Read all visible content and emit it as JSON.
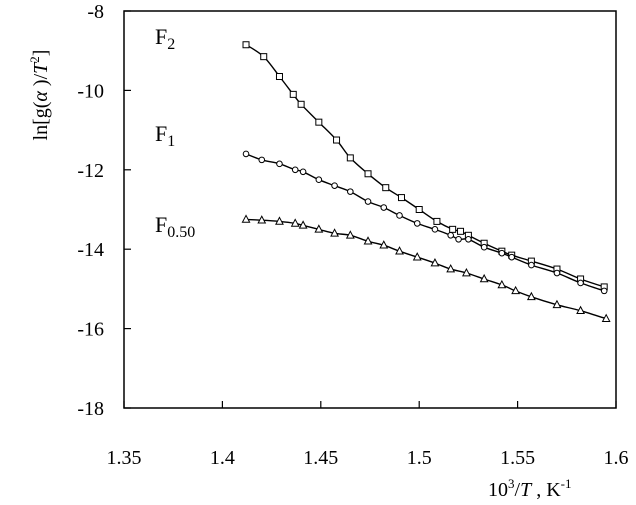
{
  "chart_data": {
    "type": "scatter",
    "xlabel": "10³/T, K⁻¹",
    "ylabel": "ln[g(α)/T²]",
    "xlim": [
      1.35,
      1.6
    ],
    "ylim": [
      -18,
      -8
    ],
    "x_ticks": [
      "1.35",
      "1.4",
      "1.45",
      "1.5",
      "1.55",
      "1.6"
    ],
    "y_ticks": [
      "-8",
      "-10",
      "-12",
      "-14",
      "-16",
      "-18"
    ],
    "grid": false,
    "series": [
      {
        "name": "F2",
        "marker": "square",
        "x": [
          1.412,
          1.421,
          1.429,
          1.436,
          1.44,
          1.449,
          1.458,
          1.465,
          1.474,
          1.483,
          1.491,
          1.5,
          1.509,
          1.517,
          1.521,
          1.525,
          1.533,
          1.542,
          1.547,
          1.557,
          1.57,
          1.582,
          1.594
        ],
        "y": [
          -8.85,
          -9.15,
          -9.65,
          -10.1,
          -10.35,
          -10.8,
          -11.25,
          -11.7,
          -12.1,
          -12.45,
          -12.7,
          -13.0,
          -13.3,
          -13.5,
          -13.55,
          -13.65,
          -13.85,
          -14.05,
          -14.15,
          -14.3,
          -14.5,
          -14.75,
          -14.95
        ]
      },
      {
        "name": "F1",
        "marker": "circle",
        "x": [
          1.412,
          1.42,
          1.429,
          1.437,
          1.441,
          1.449,
          1.457,
          1.465,
          1.474,
          1.482,
          1.49,
          1.499,
          1.508,
          1.516,
          1.52,
          1.525,
          1.533,
          1.542,
          1.547,
          1.557,
          1.57,
          1.582,
          1.594
        ],
        "y": [
          -11.6,
          -11.75,
          -11.85,
          -12.0,
          -12.05,
          -12.25,
          -12.4,
          -12.55,
          -12.8,
          -12.95,
          -13.15,
          -13.35,
          -13.5,
          -13.65,
          -13.75,
          -13.75,
          -13.95,
          -14.1,
          -14.2,
          -14.4,
          -14.6,
          -14.85,
          -15.05
        ]
      },
      {
        "name": "F0.50",
        "marker": "triangle",
        "x": [
          1.412,
          1.42,
          1.429,
          1.437,
          1.441,
          1.449,
          1.457,
          1.465,
          1.474,
          1.482,
          1.49,
          1.499,
          1.508,
          1.516,
          1.524,
          1.533,
          1.542,
          1.549,
          1.557,
          1.57,
          1.582,
          1.595
        ],
        "y": [
          -13.25,
          -13.27,
          -13.3,
          -13.35,
          -13.4,
          -13.5,
          -13.6,
          -13.65,
          -13.8,
          -13.9,
          -14.05,
          -14.2,
          -14.35,
          -14.5,
          -14.6,
          -14.75,
          -14.9,
          -15.05,
          -15.2,
          -15.4,
          -15.55,
          -15.75
        ]
      }
    ]
  },
  "series_labels": [
    {
      "main": "F",
      "sub": "2"
    },
    {
      "main": "F",
      "sub": "1"
    },
    {
      "main": "F",
      "sub": "0.50"
    }
  ]
}
